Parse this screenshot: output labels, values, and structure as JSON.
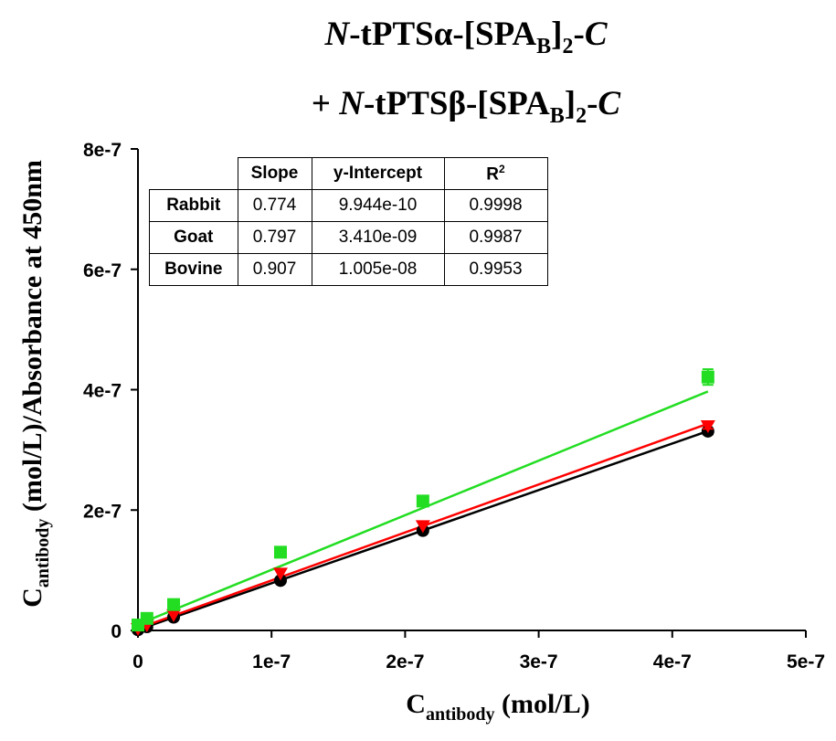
{
  "title": {
    "line1": {
      "prefix": "N",
      "mid": "-tPTSα-[SPA",
      "sub": "B",
      "close": "]",
      "sub2": "2",
      "dash": "-",
      "suffix": "C"
    },
    "line2": {
      "lead": "+ ",
      "prefix": "N",
      "mid": "-tPTSβ-[SPA",
      "sub": "B",
      "close": "]",
      "sub2": "2",
      "dash": "-",
      "suffix": "C"
    }
  },
  "axes": {
    "x": {
      "title_main": "C",
      "title_sub": "antibody",
      "title_rest": " (mol/L)"
    },
    "y": {
      "title_main": "C",
      "title_sub": "antibody",
      "title_rest": " (mol/L)/Absorbance at 450nm"
    }
  },
  "stats_table": {
    "headers": [
      "Slope",
      "y-Intercept",
      "R",
      "2"
    ],
    "rows": [
      {
        "name": "Rabbit",
        "slope": "0.774",
        "intercept": "9.944e-10",
        "r2": "0.9998"
      },
      {
        "name": "Goat",
        "slope": "0.797",
        "intercept": "3.410e-09",
        "r2": "0.9987"
      },
      {
        "name": "Bovine",
        "slope": "0.907",
        "intercept": "1.005e-08",
        "r2": "0.9953"
      }
    ]
  },
  "chart_data": {
    "type": "scatter",
    "xlim": [
      0,
      5e-07
    ],
    "ylim": [
      0,
      8e-07
    ],
    "x_ticks": [
      0,
      1e-07,
      2e-07,
      3e-07,
      4e-07,
      5e-07
    ],
    "x_tick_labels": [
      "0",
      "1e-7",
      "2e-7",
      "3e-7",
      "4e-7",
      "5e-7"
    ],
    "y_ticks": [
      0,
      2e-07,
      4e-07,
      6e-07,
      8e-07
    ],
    "y_tick_labels": [
      "0",
      "2e-7",
      "4e-7",
      "6e-7",
      "8e-7"
    ],
    "grid": false,
    "series": [
      {
        "color": "#000000",
        "marker": "circle",
        "x": [
          0,
          6.7e-09,
          2.67e-08,
          1.067e-07,
          2.133e-07,
          4.267e-07
        ],
        "y": [
          1e-09,
          6e-09,
          2.2e-08,
          8.3e-08,
          1.66e-07,
          3.31e-07
        ],
        "err": [
          0,
          0,
          0,
          0,
          0,
          5e-09
        ],
        "fit": {
          "slope": 0.774,
          "intercept": 9.944e-10
        }
      },
      {
        "color": "#ff0000",
        "marker": "triangle-down",
        "x": [
          0,
          6.7e-09,
          2.67e-08,
          1.067e-07,
          2.133e-07,
          4.267e-07
        ],
        "y": [
          3e-09,
          9e-09,
          2.6e-08,
          9.5e-08,
          1.74e-07,
          3.4e-07
        ],
        "err": [
          0,
          0,
          0,
          0,
          0,
          5e-09
        ],
        "fit": {
          "slope": 0.797,
          "intercept": 3.41e-09
        }
      },
      {
        "color": "#22dd22",
        "marker": "square",
        "x": [
          0,
          6.7e-09,
          2.67e-08,
          1.067e-07,
          2.133e-07,
          4.267e-07
        ],
        "y": [
          9e-09,
          2e-08,
          4.3e-08,
          1.3e-07,
          2.15e-07,
          4.21e-07
        ],
        "err": [
          0,
          0,
          0,
          0,
          0,
          1.3e-08
        ],
        "fit": {
          "slope": 0.907,
          "intercept": 1.005e-08
        }
      }
    ]
  }
}
